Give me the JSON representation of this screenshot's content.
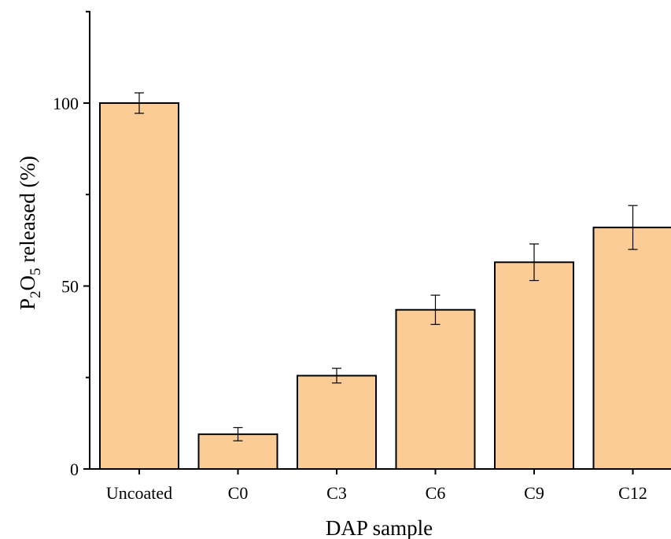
{
  "chart_data": {
    "type": "bar",
    "categories": [
      "Uncoated",
      "C0",
      "C3",
      "C6",
      "C9",
      "C12"
    ],
    "values": [
      100,
      9.5,
      25.5,
      43.5,
      56.5,
      66
    ],
    "errors": [
      2.8,
      1.8,
      2.0,
      4.0,
      5.0,
      6.0
    ],
    "xlabel": "DAP sample",
    "ylabel": {
      "prefix": "P",
      "sub1": "2",
      "mid": "O",
      "sub2": "5",
      "suffix": " released (%)"
    },
    "ylim": [
      0,
      125
    ],
    "yticks": [
      0,
      50,
      100
    ],
    "grid": false,
    "bar_color": "#FCCC96"
  }
}
